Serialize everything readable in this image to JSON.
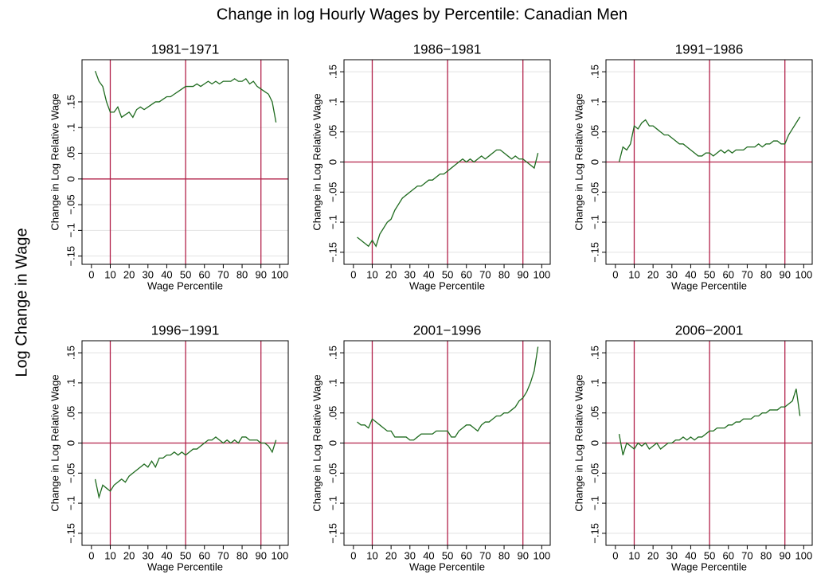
{
  "title": "Change in log Hourly Wages by Percentile: Canadian Men",
  "ylabel": "Log Change in Wage",
  "chart_data": [
    {
      "type": "line",
      "title": "1981−1971",
      "xlabel": "Wage Percentile",
      "ylabel": "Change in Log Relative Wage",
      "x": [
        2,
        4,
        6,
        8,
        10,
        12,
        14,
        16,
        18,
        20,
        22,
        24,
        26,
        28,
        30,
        32,
        34,
        36,
        38,
        40,
        42,
        44,
        46,
        48,
        50,
        52,
        54,
        56,
        58,
        60,
        62,
        64,
        66,
        68,
        70,
        72,
        74,
        76,
        78,
        80,
        82,
        84,
        86,
        88,
        90,
        92,
        94,
        96,
        98
      ],
      "values": [
        0.21,
        0.19,
        0.18,
        0.15,
        0.13,
        0.13,
        0.14,
        0.12,
        0.125,
        0.13,
        0.12,
        0.135,
        0.14,
        0.135,
        0.14,
        0.145,
        0.15,
        0.15,
        0.155,
        0.16,
        0.16,
        0.165,
        0.17,
        0.175,
        0.18,
        0.18,
        0.18,
        0.185,
        0.18,
        0.185,
        0.19,
        0.185,
        0.19,
        0.185,
        0.19,
        0.19,
        0.19,
        0.195,
        0.19,
        0.19,
        0.195,
        0.185,
        0.19,
        0.18,
        0.175,
        0.17,
        0.165,
        0.15,
        0.11
      ],
      "color": "#1f6b1f",
      "ref_color": "#b2224a",
      "vlines": [
        10,
        50,
        90
      ],
      "hline": 0,
      "xlim": [
        -5,
        104.5
      ],
      "ylim": [
        -0.166,
        0.232
      ],
      "xticks": [
        0,
        10,
        20,
        30,
        40,
        50,
        60,
        70,
        80,
        90,
        100
      ],
      "yticks": [
        {
          "value": -0.15,
          "label": "−.15"
        },
        {
          "value": -0.1,
          "label": "−.1"
        },
        {
          "value": -0.05,
          "label": "−.05"
        },
        0,
        {
          "value": 0.05,
          "label": ".05"
        },
        {
          "value": 0.1,
          "label": ".1"
        },
        {
          "value": 0.15,
          "label": ".15"
        }
      ],
      "grid": true
    },
    {
      "type": "line",
      "title": "1986−1981",
      "xlabel": "Wage Percentile",
      "ylabel": "Change in Log Relative Wage",
      "x": [
        2,
        4,
        6,
        8,
        10,
        12,
        14,
        16,
        18,
        20,
        22,
        24,
        26,
        28,
        30,
        32,
        34,
        36,
        38,
        40,
        42,
        44,
        46,
        48,
        50,
        52,
        54,
        56,
        58,
        60,
        62,
        64,
        66,
        68,
        70,
        72,
        74,
        76,
        78,
        80,
        82,
        84,
        86,
        88,
        90,
        92,
        94,
        96,
        98
      ],
      "values": [
        -0.125,
        -0.13,
        -0.135,
        -0.14,
        -0.13,
        -0.14,
        -0.12,
        -0.11,
        -0.1,
        -0.095,
        -0.08,
        -0.07,
        -0.06,
        -0.055,
        -0.05,
        -0.045,
        -0.04,
        -0.04,
        -0.035,
        -0.03,
        -0.03,
        -0.025,
        -0.02,
        -0.02,
        -0.015,
        -0.01,
        -0.005,
        0,
        0.005,
        0,
        0.005,
        0,
        0.005,
        0.01,
        0.005,
        0.01,
        0.015,
        0.02,
        0.02,
        0.015,
        0.01,
        0.005,
        0.01,
        0.005,
        0.005,
        0,
        -0.005,
        -0.01,
        0.015
      ],
      "color": "#1f6b1f",
      "ref_color": "#b2224a",
      "vlines": [
        10,
        50,
        90
      ],
      "hline": 0,
      "xlim": [
        -5,
        104.5
      ],
      "ylim": [
        -0.17,
        0.17
      ],
      "xticks": [
        0,
        10,
        20,
        30,
        40,
        50,
        60,
        70,
        80,
        90,
        100
      ],
      "yticks": [
        {
          "value": -0.15,
          "label": "−.15"
        },
        {
          "value": -0.1,
          "label": "−.1"
        },
        {
          "value": -0.05,
          "label": "−.05"
        },
        0,
        {
          "value": 0.05,
          "label": ".05"
        },
        {
          "value": 0.1,
          "label": ".1"
        },
        {
          "value": 0.15,
          "label": ".15"
        }
      ],
      "grid": true
    },
    {
      "type": "line",
      "title": "1991−1986",
      "xlabel": "Wage Percentile",
      "ylabel": "Change in Log Relative Wage",
      "x": [
        2,
        4,
        6,
        8,
        10,
        12,
        14,
        16,
        18,
        20,
        22,
        24,
        26,
        28,
        30,
        32,
        34,
        36,
        38,
        40,
        42,
        44,
        46,
        48,
        50,
        52,
        54,
        56,
        58,
        60,
        62,
        64,
        66,
        68,
        70,
        72,
        74,
        76,
        78,
        80,
        82,
        84,
        86,
        88,
        90,
        92,
        94,
        96,
        98
      ],
      "values": [
        0,
        0.025,
        0.02,
        0.03,
        0.06,
        0.055,
        0.065,
        0.07,
        0.06,
        0.06,
        0.055,
        0.05,
        0.045,
        0.045,
        0.04,
        0.035,
        0.03,
        0.03,
        0.025,
        0.02,
        0.015,
        0.01,
        0.01,
        0.015,
        0.015,
        0.01,
        0.015,
        0.02,
        0.015,
        0.02,
        0.015,
        0.02,
        0.02,
        0.02,
        0.025,
        0.025,
        0.025,
        0.03,
        0.025,
        0.03,
        0.03,
        0.035,
        0.035,
        0.03,
        0.03,
        0.045,
        0.055,
        0.065,
        0.075
      ],
      "color": "#1f6b1f",
      "ref_color": "#b2224a",
      "vlines": [
        10,
        50,
        90
      ],
      "hline": 0,
      "xlim": [
        -5,
        104.5
      ],
      "ylim": [
        -0.17,
        0.17
      ],
      "xticks": [
        0,
        10,
        20,
        30,
        40,
        50,
        60,
        70,
        80,
        90,
        100
      ],
      "yticks": [
        {
          "value": -0.15,
          "label": "−.15"
        },
        {
          "value": -0.1,
          "label": "−.1"
        },
        {
          "value": -0.05,
          "label": "−.05"
        },
        0,
        {
          "value": 0.05,
          "label": ".05"
        },
        {
          "value": 0.1,
          "label": ".1"
        },
        {
          "value": 0.15,
          "label": ".15"
        }
      ],
      "grid": true
    },
    {
      "type": "line",
      "title": "1996−1991",
      "xlabel": "Wage Percentile",
      "ylabel": "Change in Log Relative Wage",
      "x": [
        2,
        4,
        6,
        8,
        10,
        12,
        14,
        16,
        18,
        20,
        22,
        24,
        26,
        28,
        30,
        32,
        34,
        36,
        38,
        40,
        42,
        44,
        46,
        48,
        50,
        52,
        54,
        56,
        58,
        60,
        62,
        64,
        66,
        68,
        70,
        72,
        74,
        76,
        78,
        80,
        82,
        84,
        86,
        88,
        90,
        92,
        94,
        96,
        98
      ],
      "values": [
        -0.06,
        -0.09,
        -0.07,
        -0.075,
        -0.08,
        -0.07,
        -0.065,
        -0.06,
        -0.065,
        -0.055,
        -0.05,
        -0.045,
        -0.04,
        -0.035,
        -0.04,
        -0.03,
        -0.04,
        -0.025,
        -0.025,
        -0.02,
        -0.02,
        -0.015,
        -0.02,
        -0.015,
        -0.02,
        -0.015,
        -0.01,
        -0.01,
        -0.005,
        0,
        0.005,
        0.005,
        0.01,
        0.005,
        0,
        0.005,
        0,
        0.005,
        0,
        0.01,
        0.01,
        0.005,
        0.005,
        0.005,
        0,
        0,
        -0.005,
        -0.015,
        0.005
      ],
      "color": "#1f6b1f",
      "ref_color": "#b2224a",
      "vlines": [
        10,
        50,
        90
      ],
      "hline": 0,
      "xlim": [
        -5,
        104.5
      ],
      "ylim": [
        -0.17,
        0.17
      ],
      "xticks": [
        0,
        10,
        20,
        30,
        40,
        50,
        60,
        70,
        80,
        90,
        100
      ],
      "yticks": [
        {
          "value": -0.15,
          "label": "−.15"
        },
        {
          "value": -0.1,
          "label": "−.1"
        },
        {
          "value": -0.05,
          "label": "−.05"
        },
        0,
        {
          "value": 0.05,
          "label": ".05"
        },
        {
          "value": 0.1,
          "label": ".1"
        },
        {
          "value": 0.15,
          "label": ".15"
        }
      ],
      "grid": true
    },
    {
      "type": "line",
      "title": "2001−1996",
      "xlabel": "Wage Percentile",
      "ylabel": "Change in Log Relative Wage",
      "x": [
        2,
        4,
        6,
        8,
        10,
        12,
        14,
        16,
        18,
        20,
        22,
        24,
        26,
        28,
        30,
        32,
        34,
        36,
        38,
        40,
        42,
        44,
        46,
        48,
        50,
        52,
        54,
        56,
        58,
        60,
        62,
        64,
        66,
        68,
        70,
        72,
        74,
        76,
        78,
        80,
        82,
        84,
        86,
        88,
        90,
        92,
        94,
        96,
        98
      ],
      "values": [
        0.035,
        0.03,
        0.03,
        0.025,
        0.04,
        0.035,
        0.03,
        0.025,
        0.02,
        0.02,
        0.01,
        0.01,
        0.01,
        0.01,
        0.005,
        0.005,
        0.01,
        0.015,
        0.015,
        0.015,
        0.015,
        0.02,
        0.02,
        0.02,
        0.02,
        0.01,
        0.01,
        0.02,
        0.025,
        0.03,
        0.03,
        0.025,
        0.02,
        0.03,
        0.035,
        0.035,
        0.04,
        0.045,
        0.045,
        0.05,
        0.05,
        0.055,
        0.06,
        0.07,
        0.075,
        0.085,
        0.1,
        0.12,
        0.16
      ],
      "color": "#1f6b1f",
      "ref_color": "#b2224a",
      "vlines": [
        10,
        50,
        90
      ],
      "hline": 0,
      "xlim": [
        -5,
        104.5
      ],
      "ylim": [
        -0.17,
        0.17
      ],
      "xticks": [
        0,
        10,
        20,
        30,
        40,
        50,
        60,
        70,
        80,
        90,
        100
      ],
      "yticks": [
        {
          "value": -0.15,
          "label": "−.15"
        },
        {
          "value": -0.1,
          "label": "−.1"
        },
        {
          "value": -0.05,
          "label": "−.05"
        },
        0,
        {
          "value": 0.05,
          "label": ".05"
        },
        {
          "value": 0.1,
          "label": ".1"
        },
        {
          "value": 0.15,
          "label": ".15"
        }
      ],
      "grid": true
    },
    {
      "type": "line",
      "title": "2006−2001",
      "xlabel": "Wage Percentile",
      "ylabel": "Change in Log Relative Wage",
      "x": [
        2,
        4,
        6,
        8,
        10,
        12,
        14,
        16,
        18,
        20,
        22,
        24,
        26,
        28,
        30,
        32,
        34,
        36,
        38,
        40,
        42,
        44,
        46,
        48,
        50,
        52,
        54,
        56,
        58,
        60,
        62,
        64,
        66,
        68,
        70,
        72,
        74,
        76,
        78,
        80,
        82,
        84,
        86,
        88,
        90,
        92,
        94,
        96,
        98
      ],
      "values": [
        0.015,
        -0.02,
        0,
        -0.005,
        -0.01,
        0,
        -0.005,
        0,
        -0.01,
        -0.005,
        0,
        -0.01,
        -0.005,
        0,
        0,
        0.005,
        0.005,
        0.01,
        0.005,
        0.01,
        0.005,
        0.01,
        0.01,
        0.015,
        0.02,
        0.02,
        0.025,
        0.025,
        0.025,
        0.03,
        0.03,
        0.035,
        0.035,
        0.04,
        0.04,
        0.04,
        0.045,
        0.045,
        0.05,
        0.05,
        0.055,
        0.055,
        0.055,
        0.06,
        0.06,
        0.065,
        0.07,
        0.09,
        0.045
      ],
      "color": "#1f6b1f",
      "ref_color": "#b2224a",
      "vlines": [
        10,
        50,
        90
      ],
      "hline": 0,
      "xlim": [
        -5,
        104.5
      ],
      "ylim": [
        -0.17,
        0.17
      ],
      "xticks": [
        0,
        10,
        20,
        30,
        40,
        50,
        60,
        70,
        80,
        90,
        100
      ],
      "yticks": [
        {
          "value": -0.15,
          "label": "−.15"
        },
        {
          "value": -0.1,
          "label": "−.1"
        },
        {
          "value": -0.05,
          "label": "−.05"
        },
        0,
        {
          "value": 0.05,
          "label": ".05"
        },
        {
          "value": 0.1,
          "label": ".1"
        },
        {
          "value": 0.15,
          "label": ".15"
        }
      ],
      "grid": true
    }
  ]
}
